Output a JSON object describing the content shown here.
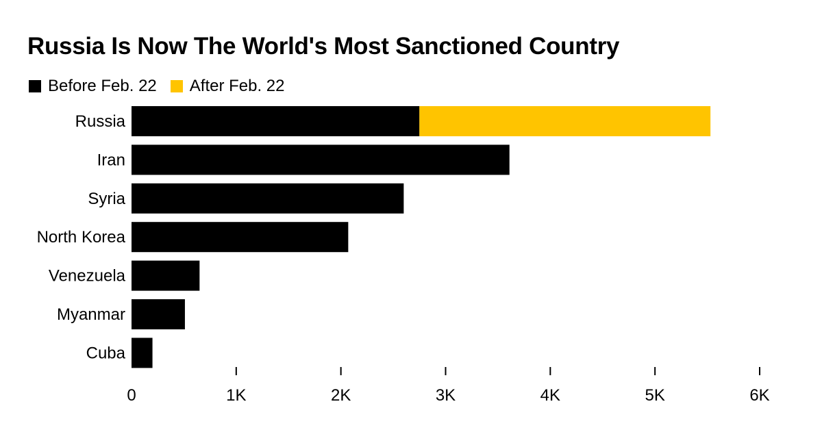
{
  "chart_data": {
    "type": "bar",
    "orientation": "horizontal",
    "stacked": true,
    "title": "Russia Is Now The World's Most Sanctioned Country",
    "categories": [
      "Russia",
      "Iran",
      "Syria",
      "North Korea",
      "Venezuela",
      "Myanmar",
      "Cuba"
    ],
    "series": [
      {
        "name": "Before Feb. 22",
        "color": "#000000",
        "values": [
          2750,
          3610,
          2600,
          2070,
          650,
          510,
          200
        ]
      },
      {
        "name": "After Feb. 22",
        "color": "#FFC400",
        "values": [
          2780,
          0,
          0,
          0,
          0,
          0,
          0
        ]
      }
    ],
    "xlim": [
      0,
      6000
    ],
    "xticks": [
      0,
      1000,
      2000,
      3000,
      4000,
      5000,
      6000
    ],
    "xtick_labels": [
      "0",
      "1K",
      "2K",
      "3K",
      "4K",
      "5K",
      "6K"
    ],
    "grid": false,
    "legend_position": "top-left"
  }
}
